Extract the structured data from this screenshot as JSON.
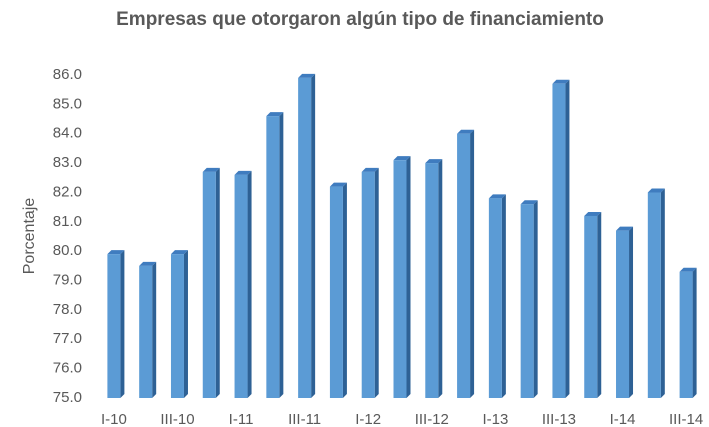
{
  "chart_data": {
    "type": "bar",
    "title": "Empresas que otorgaron algún tipo de financiamiento",
    "y_label": "Porcentaje",
    "categories": [
      "I-10",
      null,
      "III-10",
      null,
      "I-11",
      null,
      "III-11",
      null,
      "I-12",
      null,
      "III-12",
      null,
      "I-13",
      null,
      "III-13",
      null,
      "I-14",
      null,
      "III-14"
    ],
    "values": [
      79.9,
      79.5,
      79.9,
      82.7,
      82.6,
      84.6,
      85.9,
      82.2,
      82.7,
      83.1,
      83.0,
      84.0,
      81.8,
      81.6,
      85.7,
      81.2,
      80.7,
      82.0,
      79.3
    ],
    "color": "#5b9bd5",
    "ylim": [
      75,
      86
    ],
    "yticks": [
      {
        "value": 75,
        "label": "75.0"
      },
      {
        "value": 76,
        "label": "76.0"
      },
      {
        "value": 77,
        "label": "77.0"
      },
      {
        "value": 78,
        "label": "78.0"
      },
      {
        "value": 79,
        "label": "79.0"
      },
      {
        "value": 80,
        "label": "80.0"
      },
      {
        "value": 81,
        "label": "81.0"
      },
      {
        "value": 82,
        "label": "82.0"
      },
      {
        "value": 83,
        "label": "83.0"
      },
      {
        "value": 84,
        "label": "84.0"
      },
      {
        "value": 85,
        "label": "85.0"
      },
      {
        "value": 86,
        "label": "86.0"
      }
    ],
    "grid": false
  }
}
